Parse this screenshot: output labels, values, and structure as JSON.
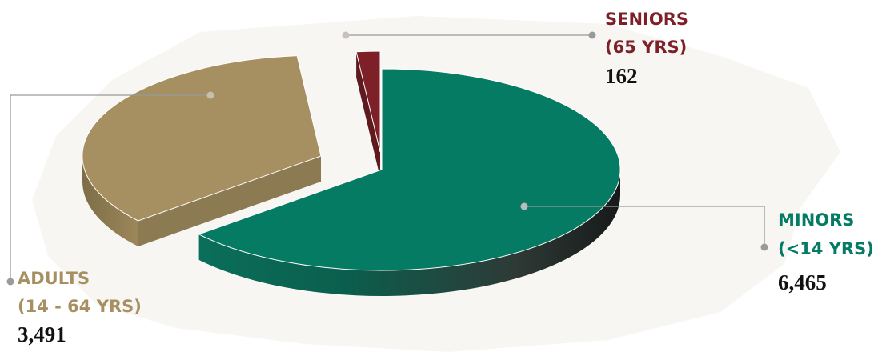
{
  "chart_data": {
    "type": "pie",
    "style": "3d-exploded",
    "categories": [
      "MINORS (<14 YRS)",
      "ADULTS (14 - 64 YRS)",
      "SENIORS (65 YRS)"
    ],
    "values": [
      6465,
      3491,
      162
    ],
    "value_labels": [
      "6,465",
      "3,491",
      "162"
    ],
    "slices": [
      {
        "key": "minors",
        "line1": "MINORS",
        "line2": "(<14 YRS)",
        "value": 6465,
        "value_label": "6,465",
        "color": "#057B64",
        "side_color": "#0B4F42"
      },
      {
        "key": "adults",
        "line1": "ADULTS",
        "line2": "(14 - 64 YRS)",
        "value": 3491,
        "value_label": "3,491",
        "color": "#A69062",
        "side_color": "#8C7A52"
      },
      {
        "key": "seniors",
        "line1": "SENIORS",
        "line2": "(65 YRS)",
        "value": 162,
        "value_label": "162",
        "color": "#7E2028",
        "side_color": "#5E1A1F"
      }
    ],
    "legend": "none",
    "leader_dot_color": "#9A9A9A"
  }
}
